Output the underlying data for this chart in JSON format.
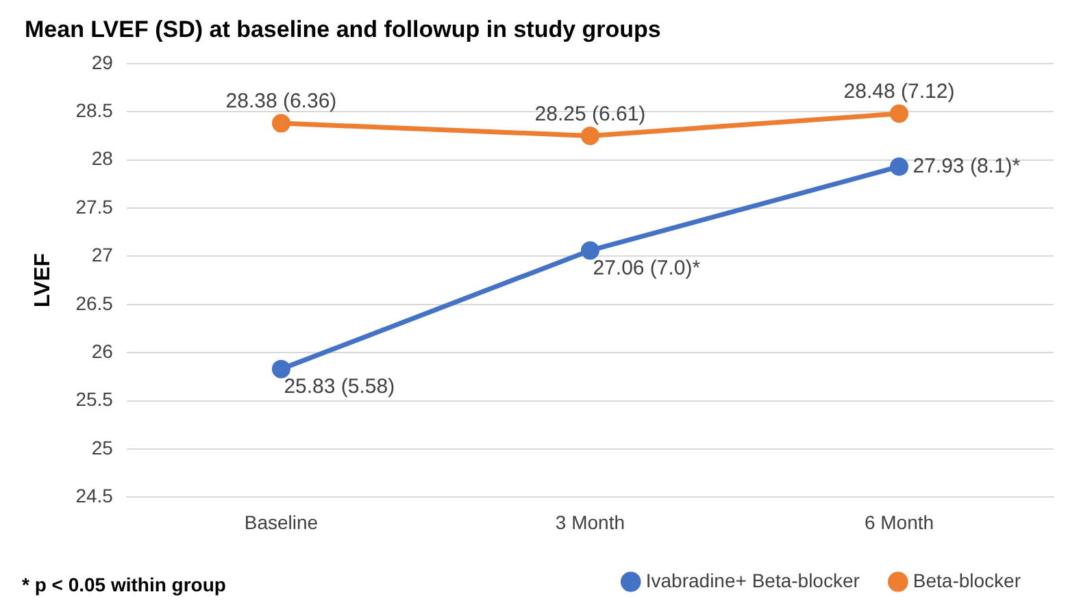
{
  "chart_data": {
    "type": "line",
    "title": "Mean LVEF (SD) at baseline and followup in study groups",
    "ylabel": "LVEF",
    "categories": [
      "Baseline",
      "3 Month",
      "6 Month"
    ],
    "series": [
      {
        "name": "Ivabradine+ Beta-blocker",
        "color": "#4472c4",
        "values": [
          25.83,
          27.06,
          27.93
        ],
        "value_labels": [
          "25.83 (5.58)",
          "27.06 (7.0)*",
          "27.93 (8.1)*"
        ]
      },
      {
        "name": "Beta-blocker",
        "color": "#ed7d31",
        "values": [
          28.38,
          28.25,
          28.48
        ],
        "value_labels": [
          "28.38 (6.36)",
          "28.25 (6.61)",
          "28.48 (7.12)"
        ]
      }
    ],
    "ylim": [
      24.5,
      29
    ],
    "yticks": [
      24.5,
      25,
      25.5,
      26,
      26.5,
      27,
      27.5,
      28,
      28.5,
      29
    ],
    "grid": "y",
    "legend": "bottom",
    "marker": "circle",
    "line_style": "solid",
    "annotations": [
      "* p < 0.05 within group"
    ]
  }
}
